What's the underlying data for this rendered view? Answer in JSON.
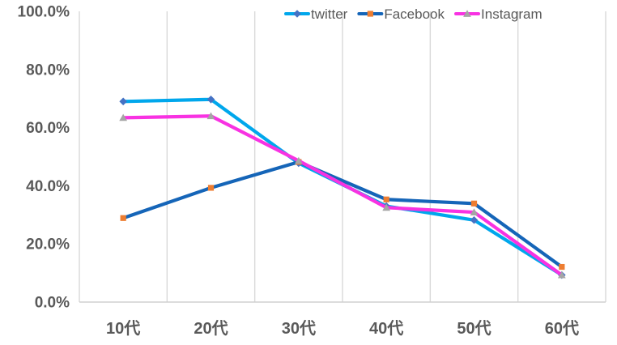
{
  "chart_data": {
    "type": "line",
    "title": "",
    "xlabel": "",
    "ylabel": "",
    "categories": [
      "10代",
      "20代",
      "30代",
      "40代",
      "50代",
      "60代"
    ],
    "series": [
      {
        "name": "twitter",
        "line_color": "#00A7EC",
        "marker": "diamond",
        "marker_color": "#4472C4",
        "values": [
          69.0,
          69.7,
          47.8,
          33.0,
          28.2,
          9.3
        ]
      },
      {
        "name": "Facebook",
        "line_color": "#1565B8",
        "marker": "square",
        "marker_color": "#ED7D31",
        "values": [
          28.9,
          39.3,
          48.2,
          35.3,
          33.9,
          12.1
        ]
      },
      {
        "name": "Instagram",
        "line_color": "#F832E2",
        "marker": "triangle",
        "marker_color": "#A5A5A5",
        "values": [
          63.4,
          64.0,
          48.6,
          32.5,
          30.9,
          9.3
        ]
      }
    ],
    "y_ticks": [
      {
        "value": 100,
        "label": "100.0%"
      },
      {
        "value": 80,
        "label": "80.0%"
      },
      {
        "value": 60,
        "label": "60.0%"
      },
      {
        "value": 40,
        "label": "40.0%"
      },
      {
        "value": 20,
        "label": "20.0%"
      },
      {
        "value": 0,
        "label": "0.0%"
      }
    ],
    "ylim": [
      0,
      100
    ],
    "grid": {
      "vertical": true,
      "horizontal": false
    },
    "legend": {
      "position": "top-center"
    },
    "colors": {
      "text": "#595959",
      "gridline": "#D9D9D9",
      "axis_line": "#D0D0D0",
      "background": "#FFFFFF"
    }
  }
}
